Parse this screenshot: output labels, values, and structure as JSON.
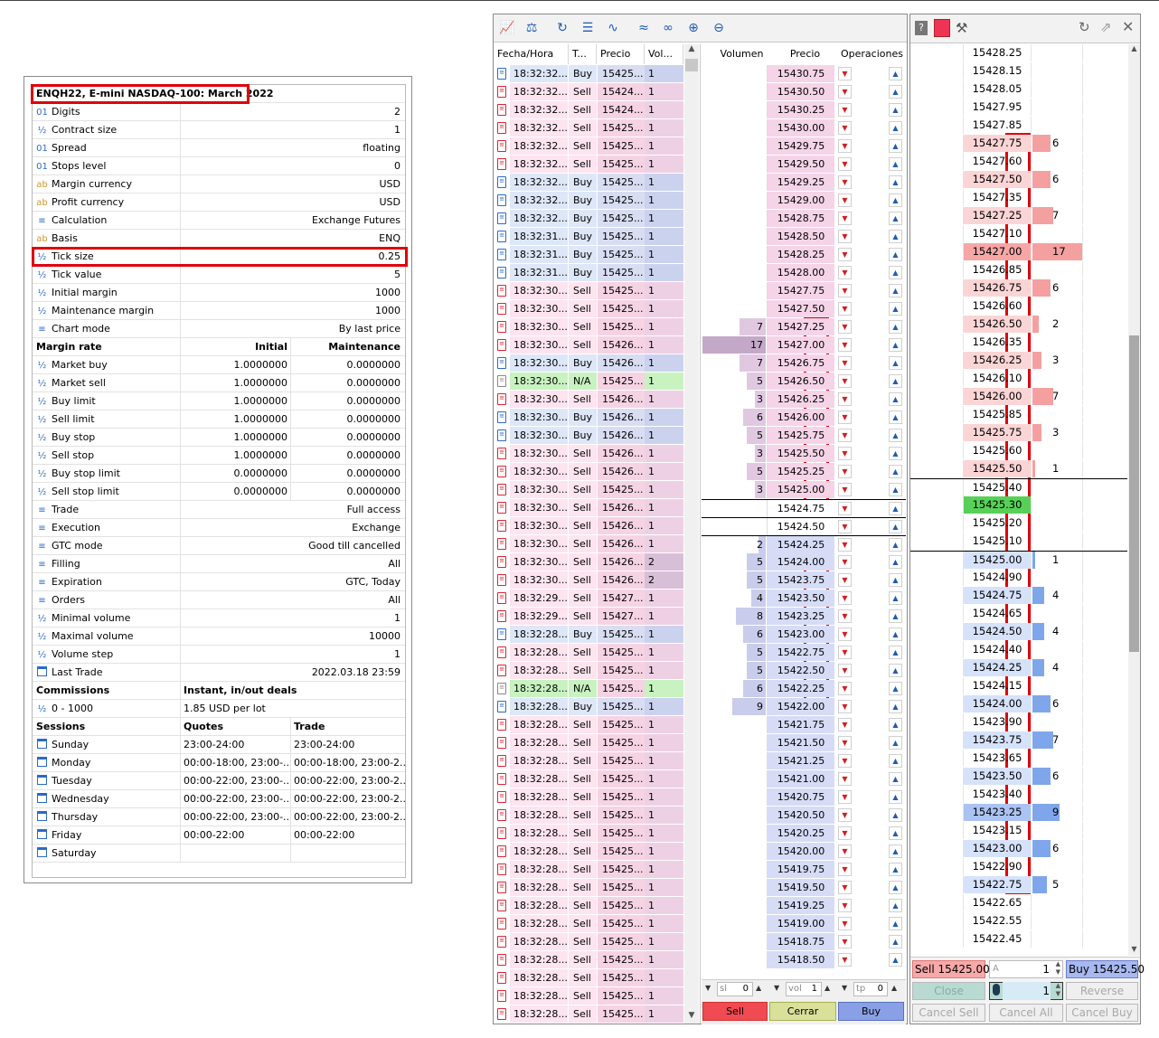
{
  "spec": {
    "title": "ENQH22, E-mini NASDAQ-100: March 2022",
    "rows": [
      {
        "icon": "01",
        "label": "Digits",
        "value": "2"
      },
      {
        "icon": "½",
        "label": "Contract size",
        "value": "1"
      },
      {
        "icon": "01",
        "label": "Spread",
        "value": "floating"
      },
      {
        "icon": "01",
        "label": "Stops level",
        "value": "0"
      },
      {
        "icon": "ab",
        "label": "Margin currency",
        "value": "USD"
      },
      {
        "icon": "ab",
        "label": "Profit currency",
        "value": "USD"
      },
      {
        "icon": "≡",
        "label": "Calculation",
        "value": "Exchange Futures"
      },
      {
        "icon": "ab",
        "label": "Basis",
        "value": "ENQ"
      },
      {
        "icon": "½",
        "label": "Tick size",
        "value": "0.25"
      },
      {
        "icon": "½",
        "label": "Tick value",
        "value": "5"
      },
      {
        "icon": "½",
        "label": "Initial margin",
        "value": "1000"
      },
      {
        "icon": "½",
        "label": "Maintenance margin",
        "value": "1000"
      },
      {
        "icon": "≡",
        "label": "Chart mode",
        "value": "By last price"
      }
    ],
    "margin_header": {
      "label": "Margin rate",
      "col2": "Initial",
      "col3": "Maintenance"
    },
    "margin_rows": [
      {
        "label": "Market buy",
        "initial": "1.0000000",
        "maint": "0.0000000"
      },
      {
        "label": "Market sell",
        "initial": "1.0000000",
        "maint": "0.0000000"
      },
      {
        "label": "Buy limit",
        "initial": "1.0000000",
        "maint": "0.0000000"
      },
      {
        "label": "Sell limit",
        "initial": "1.0000000",
        "maint": "0.0000000"
      },
      {
        "label": "Buy stop",
        "initial": "1.0000000",
        "maint": "0.0000000"
      },
      {
        "label": "Sell stop",
        "initial": "1.0000000",
        "maint": "0.0000000"
      },
      {
        "label": "Buy stop limit",
        "initial": "0.0000000",
        "maint": "0.0000000"
      },
      {
        "label": "Sell stop limit",
        "initial": "0.0000000",
        "maint": "0.0000000"
      }
    ],
    "rows2": [
      {
        "icon": "≡",
        "label": "Trade",
        "value": "Full access"
      },
      {
        "icon": "≡",
        "label": "Execution",
        "value": "Exchange"
      },
      {
        "icon": "≡",
        "label": "GTC mode",
        "value": "Good till cancelled"
      },
      {
        "icon": "≡",
        "label": "Filling",
        "value": "All"
      },
      {
        "icon": "≡",
        "label": "Expiration",
        "value": "GTC, Today"
      },
      {
        "icon": "≡",
        "label": "Orders",
        "value": "All"
      },
      {
        "icon": "½",
        "label": "Minimal volume",
        "value": "1"
      },
      {
        "icon": "½",
        "label": "Maximal volume",
        "value": "10000"
      },
      {
        "icon": "½",
        "label": "Volume step",
        "value": "1"
      },
      {
        "icon": "cal",
        "label": "Last Trade",
        "value": "2022.03.18 23:59"
      }
    ],
    "commissions_header": {
      "label": "Commissions",
      "col2": "Instant, in/out deals"
    },
    "commissions_row": {
      "icon": "½",
      "label": "0 - 1000",
      "value": "1.85 USD per lot"
    },
    "sessions_header": {
      "label": "Sessions",
      "col2": "Quotes",
      "col3": "Trade"
    },
    "sessions": [
      {
        "day": "Sunday",
        "quotes": "23:00-24:00",
        "trade": "23:00-24:00"
      },
      {
        "day": "Monday",
        "quotes": "00:00-18:00, 23:00-...",
        "trade": "00:00-18:00, 23:00-2..."
      },
      {
        "day": "Tuesday",
        "quotes": "00:00-22:00, 23:00-...",
        "trade": "00:00-22:00, 23:00-2..."
      },
      {
        "day": "Wednesday",
        "quotes": "00:00-22:00, 23:00-...",
        "trade": "00:00-22:00, 23:00-2..."
      },
      {
        "day": "Thursday",
        "quotes": "00:00-22:00, 23:00-...",
        "trade": "00:00-22:00, 23:00-2..."
      },
      {
        "day": "Friday",
        "quotes": "00:00-22:00",
        "trade": "00:00-22:00"
      },
      {
        "day": "Saturday",
        "quotes": "",
        "trade": ""
      }
    ]
  },
  "dom": {
    "headers": {
      "time": "Fecha/Hora",
      "type": "T...",
      "price": "Precio",
      "vol": "Vol...",
      "volume": "Volumen",
      "price2": "Precio",
      "ops": "Operaciones"
    },
    "trades": [
      {
        "t": "18:32:32...",
        "s": "Buy",
        "p": "15425...",
        "v": "1"
      },
      {
        "t": "18:32:32...",
        "s": "Sell",
        "p": "15424...",
        "v": "1"
      },
      {
        "t": "18:32:32...",
        "s": "Sell",
        "p": "15424...",
        "v": "1"
      },
      {
        "t": "18:32:32...",
        "s": "Sell",
        "p": "15425...",
        "v": "1"
      },
      {
        "t": "18:32:32...",
        "s": "Sell",
        "p": "15425...",
        "v": "1"
      },
      {
        "t": "18:32:32...",
        "s": "Sell",
        "p": "15425...",
        "v": "1"
      },
      {
        "t": "18:32:32...",
        "s": "Buy",
        "p": "15425...",
        "v": "1"
      },
      {
        "t": "18:32:32...",
        "s": "Buy",
        "p": "15425...",
        "v": "1"
      },
      {
        "t": "18:32:32...",
        "s": "Buy",
        "p": "15425...",
        "v": "1"
      },
      {
        "t": "18:32:31...",
        "s": "Buy",
        "p": "15425...",
        "v": "1"
      },
      {
        "t": "18:32:31...",
        "s": "Buy",
        "p": "15425...",
        "v": "1"
      },
      {
        "t": "18:32:31...",
        "s": "Buy",
        "p": "15425...",
        "v": "1"
      },
      {
        "t": "18:32:30...",
        "s": "Sell",
        "p": "15425...",
        "v": "1"
      },
      {
        "t": "18:32:30...",
        "s": "Sell",
        "p": "15425...",
        "v": "1"
      },
      {
        "t": "18:32:30...",
        "s": "Sell",
        "p": "15425...",
        "v": "1"
      },
      {
        "t": "18:32:30...",
        "s": "Sell",
        "p": "15426...",
        "v": "1"
      },
      {
        "t": "18:32:30...",
        "s": "Buy",
        "p": "15426...",
        "v": "1"
      },
      {
        "t": "18:32:30...",
        "s": "N/A",
        "p": "15425...",
        "v": "1"
      },
      {
        "t": "18:32:30...",
        "s": "Sell",
        "p": "15426...",
        "v": "1"
      },
      {
        "t": "18:32:30...",
        "s": "Buy",
        "p": "15426...",
        "v": "1"
      },
      {
        "t": "18:32:30...",
        "s": "Buy",
        "p": "15426...",
        "v": "1"
      },
      {
        "t": "18:32:30...",
        "s": "Sell",
        "p": "15426...",
        "v": "1"
      },
      {
        "t": "18:32:30...",
        "s": "Sell",
        "p": "15426...",
        "v": "1"
      },
      {
        "t": "18:32:30...",
        "s": "Sell",
        "p": "15425...",
        "v": "1"
      },
      {
        "t": "18:32:30...",
        "s": "Sell",
        "p": "15426...",
        "v": "1"
      },
      {
        "t": "18:32:30...",
        "s": "Sell",
        "p": "15426...",
        "v": "1"
      },
      {
        "t": "18:32:30...",
        "s": "Sell",
        "p": "15426...",
        "v": "1"
      },
      {
        "t": "18:32:30...",
        "s": "Sell",
        "p": "15426...",
        "v": "2"
      },
      {
        "t": "18:32:30...",
        "s": "Sell",
        "p": "15426...",
        "v": "2"
      },
      {
        "t": "18:32:29...",
        "s": "Sell",
        "p": "15427...",
        "v": "1"
      },
      {
        "t": "18:32:29...",
        "s": "Sell",
        "p": "15427...",
        "v": "1"
      },
      {
        "t": "18:32:28...",
        "s": "Buy",
        "p": "15425...",
        "v": "1"
      },
      {
        "t": "18:32:28...",
        "s": "Sell",
        "p": "15425...",
        "v": "1"
      },
      {
        "t": "18:32:28...",
        "s": "Sell",
        "p": "15425...",
        "v": "1"
      },
      {
        "t": "18:32:28...",
        "s": "N/A",
        "p": "15425...",
        "v": "1"
      },
      {
        "t": "18:32:28...",
        "s": "Buy",
        "p": "15425...",
        "v": "1"
      },
      {
        "t": "18:32:28...",
        "s": "Sell",
        "p": "15425...",
        "v": "1"
      },
      {
        "t": "18:32:28...",
        "s": "Sell",
        "p": "15425...",
        "v": "1"
      },
      {
        "t": "18:32:28...",
        "s": "Sell",
        "p": "15425...",
        "v": "1"
      },
      {
        "t": "18:32:28...",
        "s": "Sell",
        "p": "15425...",
        "v": "1"
      },
      {
        "t": "18:32:28...",
        "s": "Sell",
        "p": "15425...",
        "v": "1"
      },
      {
        "t": "18:32:28...",
        "s": "Sell",
        "p": "15425...",
        "v": "1"
      },
      {
        "t": "18:32:28...",
        "s": "Sell",
        "p": "15425...",
        "v": "1"
      },
      {
        "t": "18:32:28...",
        "s": "Sell",
        "p": "15425...",
        "v": "1"
      },
      {
        "t": "18:32:28...",
        "s": "Sell",
        "p": "15425...",
        "v": "1"
      },
      {
        "t": "18:32:28...",
        "s": "Sell",
        "p": "15425...",
        "v": "1"
      },
      {
        "t": "18:32:28...",
        "s": "Sell",
        "p": "15425...",
        "v": "1"
      },
      {
        "t": "18:32:28...",
        "s": "Sell",
        "p": "15425...",
        "v": "1"
      },
      {
        "t": "18:32:28...",
        "s": "Sell",
        "p": "15425...",
        "v": "1"
      },
      {
        "t": "18:32:28...",
        "s": "Sell",
        "p": "15425...",
        "v": "1"
      },
      {
        "t": "18:32:28...",
        "s": "Sell",
        "p": "15425...",
        "v": "1"
      },
      {
        "t": "18:32:28...",
        "s": "Sell",
        "p": "15425...",
        "v": "1"
      },
      {
        "t": "18:32:28...",
        "s": "Sell",
        "p": "15425...",
        "v": "1"
      }
    ],
    "book": [
      {
        "vol": "",
        "price": "15430.75",
        "side": "ask"
      },
      {
        "vol": "",
        "price": "15430.50",
        "side": "ask"
      },
      {
        "vol": "",
        "price": "15430.25",
        "side": "ask"
      },
      {
        "vol": "",
        "price": "15430.00",
        "side": "ask"
      },
      {
        "vol": "",
        "price": "15429.75",
        "side": "ask"
      },
      {
        "vol": "",
        "price": "15429.50",
        "side": "ask"
      },
      {
        "vol": "",
        "price": "15429.25",
        "side": "ask"
      },
      {
        "vol": "",
        "price": "15429.00",
        "side": "ask"
      },
      {
        "vol": "",
        "price": "15428.75",
        "side": "ask"
      },
      {
        "vol": "",
        "price": "15428.50",
        "side": "ask"
      },
      {
        "vol": "",
        "price": "15428.25",
        "side": "ask"
      },
      {
        "vol": "",
        "price": "15428.00",
        "side": "ask"
      },
      {
        "vol": "",
        "price": "15427.75",
        "side": "ask"
      },
      {
        "vol": "",
        "price": "15427.50",
        "side": "ask"
      },
      {
        "vol": "7",
        "price": "15427.25",
        "side": "ask"
      },
      {
        "vol": "17",
        "price": "15427.00",
        "side": "ask"
      },
      {
        "vol": "7",
        "price": "15426.75",
        "side": "ask"
      },
      {
        "vol": "5",
        "price": "15426.50",
        "side": "ask"
      },
      {
        "vol": "3",
        "price": "15426.25",
        "side": "ask"
      },
      {
        "vol": "6",
        "price": "15426.00",
        "side": "ask"
      },
      {
        "vol": "5",
        "price": "15425.75",
        "side": "ask"
      },
      {
        "vol": "3",
        "price": "15425.50",
        "side": "ask"
      },
      {
        "vol": "5",
        "price": "15425.25",
        "side": "ask"
      },
      {
        "vol": "3",
        "price": "15425.00",
        "side": "ask"
      },
      {
        "vol": "",
        "price": "15424.75",
        "side": "mid"
      },
      {
        "vol": "",
        "price": "15424.50",
        "side": "mid"
      },
      {
        "vol": "2",
        "price": "15424.25",
        "side": "bid"
      },
      {
        "vol": "5",
        "price": "15424.00",
        "side": "bid"
      },
      {
        "vol": "5",
        "price": "15423.75",
        "side": "bid"
      },
      {
        "vol": "4",
        "price": "15423.50",
        "side": "bid"
      },
      {
        "vol": "8",
        "price": "15423.25",
        "side": "bid"
      },
      {
        "vol": "6",
        "price": "15423.00",
        "side": "bid"
      },
      {
        "vol": "5",
        "price": "15422.75",
        "side": "bid"
      },
      {
        "vol": "5",
        "price": "15422.50",
        "side": "bid"
      },
      {
        "vol": "6",
        "price": "15422.25",
        "side": "bid"
      },
      {
        "vol": "9",
        "price": "15422.00",
        "side": "bid"
      },
      {
        "vol": "",
        "price": "15421.75",
        "side": "bid"
      },
      {
        "vol": "",
        "price": "15421.50",
        "side": "bid"
      },
      {
        "vol": "",
        "price": "15421.25",
        "side": "bid"
      },
      {
        "vol": "",
        "price": "15421.00",
        "side": "bid"
      },
      {
        "vol": "",
        "price": "15420.75",
        "side": "bid"
      },
      {
        "vol": "",
        "price": "15420.50",
        "side": "bid"
      },
      {
        "vol": "",
        "price": "15420.25",
        "side": "bid"
      },
      {
        "vol": "",
        "price": "15420.00",
        "side": "bid"
      },
      {
        "vol": "",
        "price": "15419.75",
        "side": "bid"
      },
      {
        "vol": "",
        "price": "15419.50",
        "side": "bid"
      },
      {
        "vol": "",
        "price": "15419.25",
        "side": "bid"
      },
      {
        "vol": "",
        "price": "15419.00",
        "side": "bid"
      },
      {
        "vol": "",
        "price": "15418.75",
        "side": "bid"
      },
      {
        "vol": "",
        "price": "15418.50",
        "side": "bid"
      }
    ],
    "controls": {
      "sl_label": "sl",
      "sl_value": "0",
      "vol_label": "vol",
      "vol_value": "1",
      "tp_label": "tp",
      "tp_value": "0",
      "sell": "Sell",
      "close": "Cerrar",
      "buy": "Buy"
    }
  },
  "ladder": {
    "rows": [
      {
        "price": "15428.25",
        "vol": "",
        "side": "none"
      },
      {
        "price": "15428.15",
        "vol": "",
        "side": "none"
      },
      {
        "price": "15428.05",
        "vol": "",
        "side": "none"
      },
      {
        "price": "15427.95",
        "vol": "",
        "side": "none"
      },
      {
        "price": "15427.85",
        "vol": "",
        "side": "none"
      },
      {
        "price": "15427.75",
        "vol": "6",
        "side": "ask"
      },
      {
        "price": "15427.60",
        "vol": "",
        "side": "none"
      },
      {
        "price": "15427.50",
        "vol": "6",
        "side": "ask"
      },
      {
        "price": "15427.35",
        "vol": "",
        "side": "none"
      },
      {
        "price": "15427.25",
        "vol": "7",
        "side": "ask"
      },
      {
        "price": "15427.10",
        "vol": "",
        "side": "none"
      },
      {
        "price": "15427.00",
        "vol": "17",
        "side": "ask"
      },
      {
        "price": "15426.85",
        "vol": "",
        "side": "none"
      },
      {
        "price": "15426.75",
        "vol": "6",
        "side": "ask"
      },
      {
        "price": "15426.60",
        "vol": "",
        "side": "none"
      },
      {
        "price": "15426.50",
        "vol": "2",
        "side": "ask"
      },
      {
        "price": "15426.35",
        "vol": "",
        "side": "none"
      },
      {
        "price": "15426.25",
        "vol": "3",
        "side": "ask"
      },
      {
        "price": "15426.10",
        "vol": "",
        "side": "none"
      },
      {
        "price": "15426.00",
        "vol": "7",
        "side": "ask"
      },
      {
        "price": "15425.85",
        "vol": "",
        "side": "none"
      },
      {
        "price": "15425.75",
        "vol": "3",
        "side": "ask"
      },
      {
        "price": "15425.60",
        "vol": "",
        "side": "none"
      },
      {
        "price": "15425.50",
        "vol": "1",
        "side": "ask"
      },
      {
        "price": "15425.40",
        "vol": "",
        "side": "none"
      },
      {
        "price": "15425.30",
        "vol": "",
        "side": "last"
      },
      {
        "price": "15425.20",
        "vol": "",
        "side": "none"
      },
      {
        "price": "15425.10",
        "vol": "",
        "side": "none"
      },
      {
        "price": "15425.00",
        "vol": "1",
        "side": "bid"
      },
      {
        "price": "15424.90",
        "vol": "",
        "side": "none"
      },
      {
        "price": "15424.75",
        "vol": "4",
        "side": "bid"
      },
      {
        "price": "15424.65",
        "vol": "",
        "side": "none"
      },
      {
        "price": "15424.50",
        "vol": "4",
        "side": "bid"
      },
      {
        "price": "15424.40",
        "vol": "",
        "side": "none"
      },
      {
        "price": "15424.25",
        "vol": "4",
        "side": "bid"
      },
      {
        "price": "15424.15",
        "vol": "",
        "side": "none"
      },
      {
        "price": "15424.00",
        "vol": "6",
        "side": "bid"
      },
      {
        "price": "15423.90",
        "vol": "",
        "side": "none"
      },
      {
        "price": "15423.75",
        "vol": "7",
        "side": "bid"
      },
      {
        "price": "15423.65",
        "vol": "",
        "side": "none"
      },
      {
        "price": "15423.50",
        "vol": "6",
        "side": "bid"
      },
      {
        "price": "15423.40",
        "vol": "",
        "side": "none"
      },
      {
        "price": "15423.25",
        "vol": "9",
        "side": "bid"
      },
      {
        "price": "15423.15",
        "vol": "",
        "side": "none"
      },
      {
        "price": "15423.00",
        "vol": "6",
        "side": "bid"
      },
      {
        "price": "15422.90",
        "vol": "",
        "side": "none"
      },
      {
        "price": "15422.75",
        "vol": "5",
        "side": "bid"
      },
      {
        "price": "15422.65",
        "vol": "",
        "side": "none"
      },
      {
        "price": "15422.55",
        "vol": "",
        "side": "none"
      },
      {
        "price": "15422.45",
        "vol": "",
        "side": "none"
      }
    ],
    "controls": {
      "sell": "Sell 15425.00",
      "buy": "Buy 15425.50",
      "qty1": "1",
      "qty2": "1",
      "qty_prefix": "A",
      "close": "Close",
      "reverse": "Reverse",
      "cancel_sell": "Cancel Sell",
      "cancel_all": "Cancel All",
      "cancel_buy": "Cancel Buy"
    }
  },
  "colors": {
    "highlight": "#e0000a",
    "ask_bar": "#f4a0a0",
    "bid_bar": "#7fa6ea",
    "last": "#58d058",
    "sell_row": "#fde4ef",
    "buy_row": "#dde7f8"
  }
}
